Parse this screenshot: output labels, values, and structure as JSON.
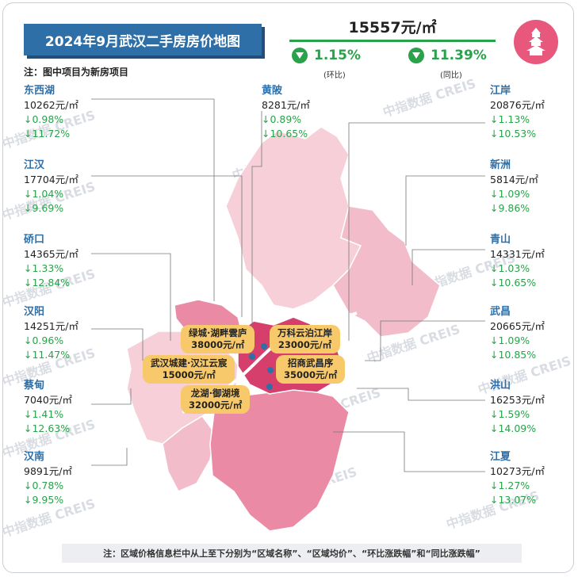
{
  "title": "2024年9月武汉二手房房价地图",
  "note": "注：图中项目为新房项目",
  "overall": {
    "price": "15557元/㎡",
    "mom_value": "1.15%",
    "mom_label": "(环比)",
    "yoy_value": "11.39%",
    "yoy_label": "(同比)"
  },
  "districts_left": [
    {
      "name": "东西湖",
      "price": "10262元/㎡",
      "mom": "↓0.98%",
      "yoy": "↓11.72%"
    },
    {
      "name": "江汉",
      "price": "17704元/㎡",
      "mom": "↓1.04%",
      "yoy": "↓9.69%"
    },
    {
      "name": "硚口",
      "price": "14365元/㎡",
      "mom": "↓1.33%",
      "yoy": "↓12.84%"
    },
    {
      "name": "汉阳",
      "price": "14251元/㎡",
      "mom": "↓0.96%",
      "yoy": "↓11.47%"
    },
    {
      "name": "蔡甸",
      "price": "7040元/㎡",
      "mom": "↓1.41%",
      "yoy": "↓12.63%"
    },
    {
      "name": "汉南",
      "price": "9891元/㎡",
      "mom": "↓0.78%",
      "yoy": "↓9.95%"
    }
  ],
  "districts_top": [
    {
      "name": "黄陂",
      "price": "8281元/㎡",
      "mom": "↓0.89%",
      "yoy": "↓10.65%"
    }
  ],
  "districts_right": [
    {
      "name": "江岸",
      "price": "20876元/㎡",
      "mom": "↓1.13%",
      "yoy": "↓10.53%"
    },
    {
      "name": "新洲",
      "price": "5814元/㎡",
      "mom": "↓1.09%",
      "yoy": "↓9.86%"
    },
    {
      "name": "青山",
      "price": "14331元/㎡",
      "mom": "↓1.03%",
      "yoy": "↓10.65%"
    },
    {
      "name": "武昌",
      "price": "20665元/㎡",
      "mom": "↓1.09%",
      "yoy": "↓10.85%"
    },
    {
      "name": "洪山",
      "price": "16253元/㎡",
      "mom": "↓1.59%",
      "yoy": "↓14.09%"
    },
    {
      "name": "江夏",
      "price": "10273元/㎡",
      "mom": "↓1.27%",
      "yoy": "↓13.07%"
    }
  ],
  "projects": [
    {
      "name": "绿城·湖畔雲庐",
      "price": "38000元/㎡"
    },
    {
      "name": "万科云泊江岸",
      "price": "23000元/㎡"
    },
    {
      "name": "武汉城建·汉江云宸",
      "price": "15000元/㎡"
    },
    {
      "name": "招商武昌序",
      "price": "35000元/㎡"
    },
    {
      "name": "龙湖·御湖境",
      "price": "32000元/㎡"
    }
  ],
  "watermark": "中指数据 CREIS",
  "footer": "注：区域价格信息栏中从上至下分别为“区域名称”、“区域均价”、“环比涨跌幅”和“同比涨跌幅”",
  "colors": {
    "title_bg": "#2f6fa7",
    "green": "#2aa24b",
    "map_dark": "#d63f6b",
    "map_mid": "#ea8aa5",
    "map_light": "#f6cfd9",
    "project_bg": "#f7c96a"
  }
}
